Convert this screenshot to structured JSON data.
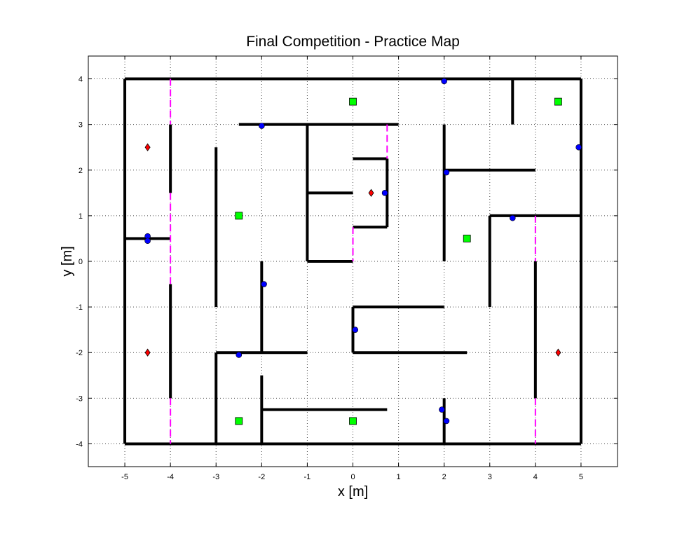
{
  "chart_data": {
    "type": "scatter",
    "title": "Final Competition - Practice Map",
    "xlabel": "x [m]",
    "ylabel": "y [m]",
    "xlim": [
      -5.8,
      5.8
    ],
    "ylim": [
      -4.5,
      4.5
    ],
    "xticks": [
      -5,
      -4,
      -3,
      -2,
      -1,
      0,
      1,
      2,
      3,
      4,
      5
    ],
    "yticks": [
      -4,
      -3,
      -2,
      -1,
      0,
      1,
      2,
      3,
      4
    ],
    "grid": true,
    "legend": "none",
    "colors": {
      "wall": "#000000",
      "door": "#ff00ff",
      "beacon": "#0000ff",
      "waypoint": "#00ff00",
      "ec_waypoint": "#ff0000",
      "grid": "#444444"
    },
    "walls": [
      [
        [
          -5,
          4
        ],
        [
          5,
          4
        ]
      ],
      [
        [
          5,
          4
        ],
        [
          5,
          -4
        ]
      ],
      [
        [
          5,
          -4
        ],
        [
          -5,
          -4
        ]
      ],
      [
        [
          -5,
          -4
        ],
        [
          -5,
          4
        ]
      ],
      [
        [
          -5,
          0.5
        ],
        [
          -4,
          0.5
        ]
      ],
      [
        [
          -4,
          3
        ],
        [
          -4,
          1.5
        ]
      ],
      [
        [
          -4,
          -0.5
        ],
        [
          -4,
          -3
        ]
      ],
      [
        [
          -3,
          2.5
        ],
        [
          -3,
          -1
        ]
      ],
      [
        [
          -2.5,
          3
        ],
        [
          1,
          3
        ]
      ],
      [
        [
          -1,
          3
        ],
        [
          -1,
          0
        ]
      ],
      [
        [
          -1,
          1.5
        ],
        [
          0,
          1.5
        ]
      ],
      [
        [
          -1,
          0
        ],
        [
          0,
          0
        ]
      ],
      [
        [
          0,
          2.25
        ],
        [
          0.75,
          2.25
        ]
      ],
      [
        [
          0.75,
          2.25
        ],
        [
          0.75,
          0.75
        ]
      ],
      [
        [
          0,
          0.75
        ],
        [
          0.75,
          0.75
        ]
      ],
      [
        [
          2,
          3
        ],
        [
          2,
          0
        ]
      ],
      [
        [
          2,
          2
        ],
        [
          4,
          2
        ]
      ],
      [
        [
          3.5,
          4
        ],
        [
          3.5,
          3
        ]
      ],
      [
        [
          3,
          1
        ],
        [
          5,
          1
        ]
      ],
      [
        [
          3,
          1
        ],
        [
          3,
          -1
        ]
      ],
      [
        [
          4,
          0
        ],
        [
          4,
          -3
        ]
      ],
      [
        [
          -2,
          0
        ],
        [
          -2,
          -2
        ]
      ],
      [
        [
          -3,
          -2
        ],
        [
          -1,
          -2
        ]
      ],
      [
        [
          -3,
          -2
        ],
        [
          -3,
          -4
        ]
      ],
      [
        [
          -2,
          -2.5
        ],
        [
          -2,
          -4
        ]
      ],
      [
        [
          -2,
          -3.25
        ],
        [
          0.75,
          -3.25
        ]
      ],
      [
        [
          0,
          -1
        ],
        [
          2,
          -1
        ]
      ],
      [
        [
          0,
          -1
        ],
        [
          0,
          -2
        ]
      ],
      [
        [
          0,
          -2
        ],
        [
          2.5,
          -2
        ]
      ],
      [
        [
          2,
          -3
        ],
        [
          2,
          -4
        ]
      ]
    ],
    "doors": [
      [
        [
          -4,
          4
        ],
        [
          -4,
          3
        ]
      ],
      [
        [
          -4,
          1.5
        ],
        [
          -4,
          -0.5
        ]
      ],
      [
        [
          -4,
          -3
        ],
        [
          -4,
          -4
        ]
      ],
      [
        [
          0.75,
          3
        ],
        [
          0.75,
          2.25
        ]
      ],
      [
        [
          0,
          0.75
        ],
        [
          0,
          0
        ]
      ],
      [
        [
          4,
          1
        ],
        [
          4,
          0
        ]
      ],
      [
        [
          4,
          -3
        ],
        [
          4,
          -4
        ]
      ]
    ],
    "beacons": [
      [
        2,
        3.95
      ],
      [
        -2,
        2.97
      ],
      [
        4.95,
        2.5
      ],
      [
        2.05,
        1.95
      ],
      [
        0.7,
        1.5
      ],
      [
        3.5,
        0.95
      ],
      [
        -4.5,
        0.55
      ],
      [
        -4.5,
        0.45
      ],
      [
        -1.95,
        -0.5
      ],
      [
        0.05,
        -1.5
      ],
      [
        -2.5,
        -2.05
      ],
      [
        1.95,
        -3.25
      ],
      [
        2.05,
        -3.5
      ]
    ],
    "waypoints": [
      [
        0,
        3.5
      ],
      [
        4.5,
        3.5
      ],
      [
        -2.5,
        1
      ],
      [
        2.5,
        0.5
      ],
      [
        -2.5,
        -3.5
      ],
      [
        0,
        -3.5
      ]
    ],
    "ec_waypoints": [
      [
        -4.5,
        2.5
      ],
      [
        0.4,
        1.5
      ],
      [
        -4.5,
        -2
      ],
      [
        4.5,
        -2
      ]
    ]
  }
}
